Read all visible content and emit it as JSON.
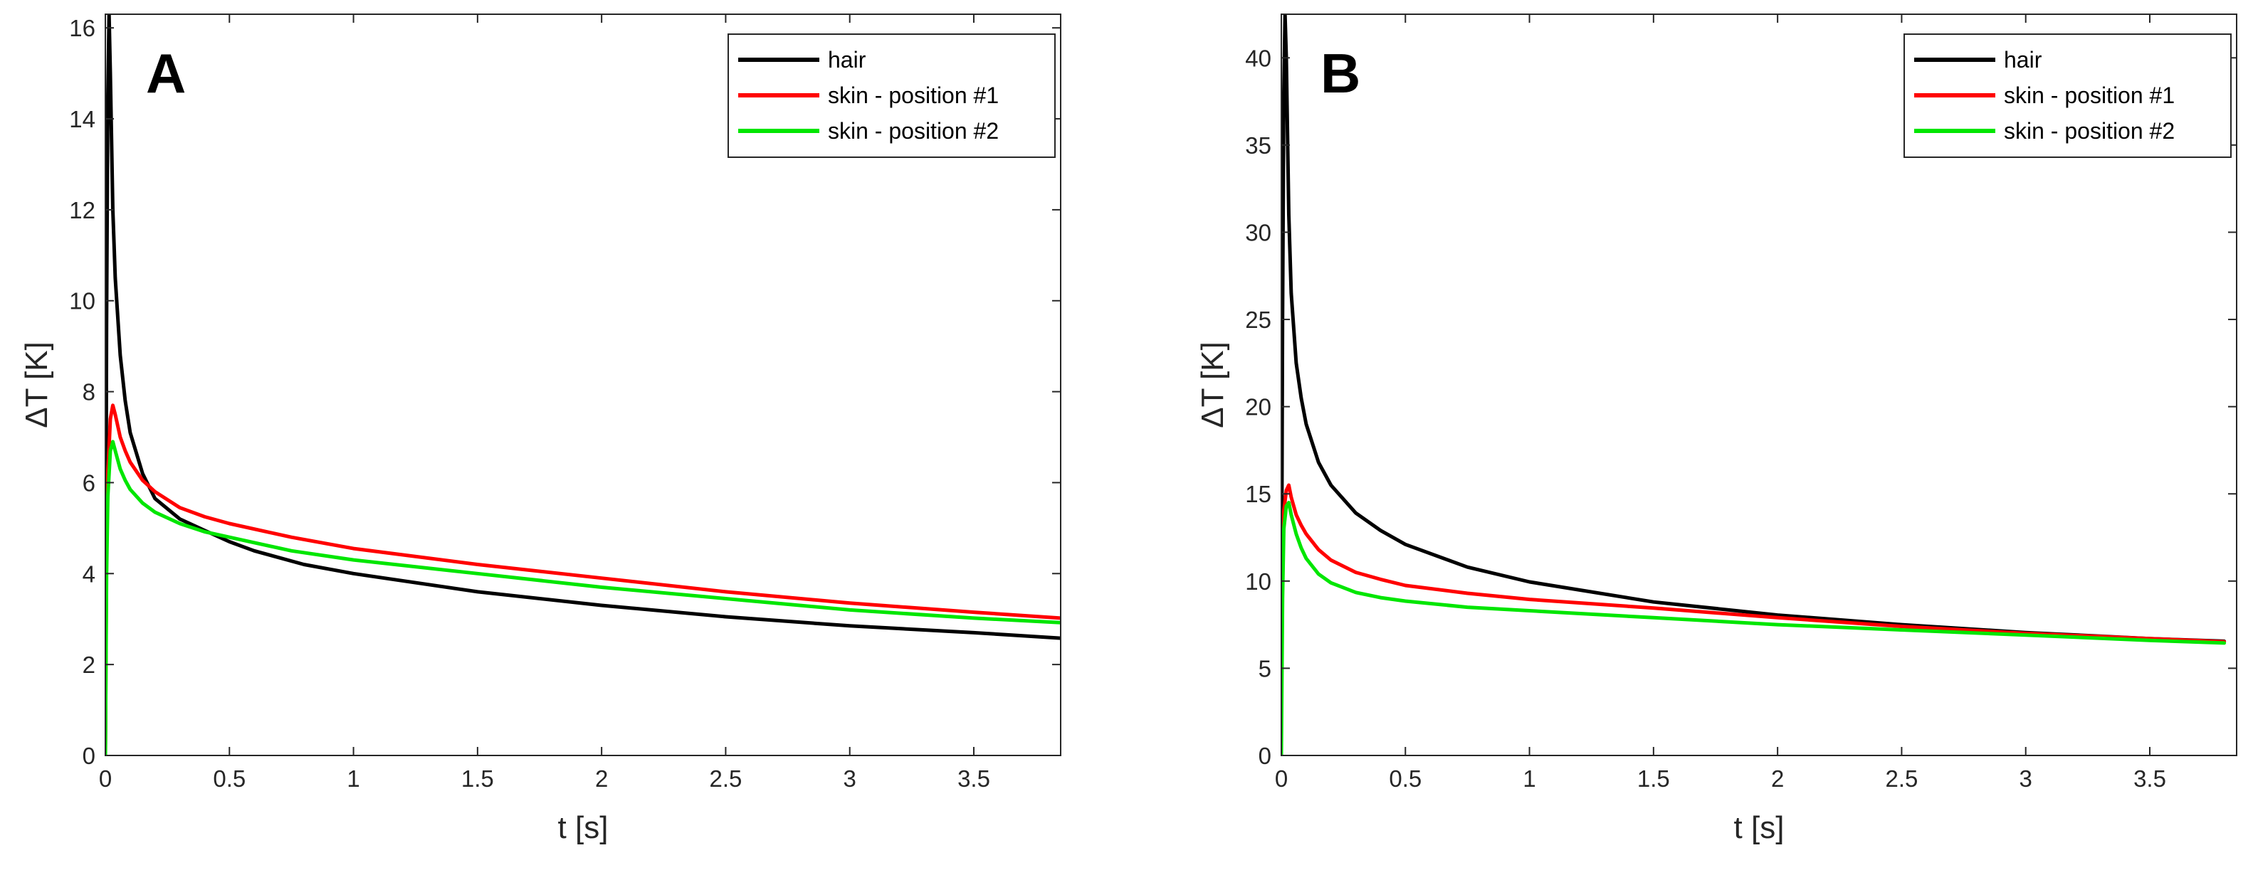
{
  "chart_data": [
    {
      "type": "line",
      "panel_label": "A",
      "xlabel": "t [s]",
      "ylabel": "ΔT [K]",
      "xlim": [
        0,
        3.85
      ],
      "ylim": [
        0,
        16.3
      ],
      "xticks": [
        0,
        0.5,
        1,
        1.5,
        2,
        2.5,
        3,
        3.5
      ],
      "xtick_labels": [
        "0",
        "0.5",
        "1",
        "1.5",
        "2",
        "2.5",
        "3",
        "3.5"
      ],
      "yticks": [
        0,
        2,
        4,
        6,
        8,
        10,
        12,
        14,
        16
      ],
      "ytick_labels": [
        "0",
        "2",
        "4",
        "6",
        "8",
        "10",
        "12",
        "14",
        "16"
      ],
      "grid": false,
      "legend_position": "top-right",
      "series": [
        {
          "name": "hair",
          "color": "#000000",
          "x": [
            0,
            0.005,
            0.01,
            0.015,
            0.02,
            0.03,
            0.04,
            0.06,
            0.08,
            0.1,
            0.15,
            0.2,
            0.3,
            0.4,
            0.5,
            0.6,
            0.8,
            1,
            1.5,
            2,
            2.5,
            3,
            3.5,
            3.85
          ],
          "y": [
            0,
            9.5,
            14.5,
            16.3,
            15,
            12,
            10.5,
            8.8,
            7.8,
            7.1,
            6.2,
            5.65,
            5.2,
            4.95,
            4.7,
            4.5,
            4.2,
            4.0,
            3.6,
            3.3,
            3.05,
            2.85,
            2.7,
            2.58
          ]
        },
        {
          "name": "skin - position #1",
          "color": "#ff0000",
          "x": [
            0,
            0.005,
            0.01,
            0.02,
            0.03,
            0.04,
            0.06,
            0.08,
            0.1,
            0.15,
            0.2,
            0.3,
            0.4,
            0.5,
            0.75,
            1,
            1.5,
            2,
            2.5,
            3,
            3.5,
            3.85
          ],
          "y": [
            0,
            4.5,
            6.2,
            7.4,
            7.7,
            7.5,
            7.0,
            6.7,
            6.45,
            6.05,
            5.8,
            5.45,
            5.25,
            5.1,
            4.8,
            4.55,
            4.2,
            3.9,
            3.6,
            3.35,
            3.15,
            3.02
          ]
        },
        {
          "name": "skin - position #2",
          "color": "#00e600",
          "x": [
            0,
            0.005,
            0.01,
            0.02,
            0.03,
            0.04,
            0.06,
            0.08,
            0.1,
            0.15,
            0.2,
            0.3,
            0.4,
            0.5,
            0.75,
            1,
            1.5,
            2,
            2.5,
            3,
            3.5,
            3.85
          ],
          "y": [
            0,
            4.0,
            5.7,
            6.7,
            6.9,
            6.7,
            6.3,
            6.05,
            5.85,
            5.55,
            5.35,
            5.1,
            4.92,
            4.8,
            4.5,
            4.3,
            4.0,
            3.7,
            3.45,
            3.2,
            3.02,
            2.92
          ]
        }
      ]
    },
    {
      "type": "line",
      "panel_label": "B",
      "xlabel": "t [s]",
      "ylabel": "ΔT [K]",
      "xlim": [
        0,
        3.85
      ],
      "ylim": [
        0,
        42.5
      ],
      "xticks": [
        0,
        0.5,
        1,
        1.5,
        2,
        2.5,
        3,
        3.5
      ],
      "xtick_labels": [
        "0",
        "0.5",
        "1",
        "1.5",
        "2",
        "2.5",
        "3",
        "3.5"
      ],
      "yticks": [
        0,
        5,
        10,
        15,
        20,
        25,
        30,
        35,
        40
      ],
      "ytick_labels": [
        "0",
        "5",
        "10",
        "15",
        "20",
        "25",
        "30",
        "35",
        "40"
      ],
      "grid": false,
      "legend_position": "top-right",
      "series": [
        {
          "name": "hair",
          "color": "#000000",
          "x": [
            0,
            0.005,
            0.01,
            0.015,
            0.02,
            0.03,
            0.04,
            0.06,
            0.08,
            0.1,
            0.15,
            0.2,
            0.3,
            0.4,
            0.5,
            0.75,
            1,
            1.5,
            2,
            2.5,
            3,
            3.5,
            3.8
          ],
          "y": [
            5,
            25,
            38,
            42.5,
            40,
            31,
            26.5,
            22.5,
            20.5,
            19.0,
            16.8,
            15.5,
            13.9,
            12.9,
            12.1,
            10.8,
            9.95,
            8.8,
            8.05,
            7.5,
            7.05,
            6.7,
            6.55
          ]
        },
        {
          "name": "skin - position #1",
          "color": "#ff0000",
          "x": [
            0,
            0.005,
            0.01,
            0.02,
            0.03,
            0.04,
            0.06,
            0.08,
            0.1,
            0.15,
            0.2,
            0.3,
            0.4,
            0.5,
            0.75,
            1,
            1.5,
            2,
            2.5,
            3,
            3.5,
            3.8
          ],
          "y": [
            5,
            11,
            14,
            15.2,
            15.5,
            14.8,
            13.8,
            13.2,
            12.7,
            11.8,
            11.2,
            10.5,
            10.1,
            9.75,
            9.3,
            8.95,
            8.45,
            7.9,
            7.4,
            7.0,
            6.7,
            6.52
          ]
        },
        {
          "name": "skin - position #2",
          "color": "#00e600",
          "x": [
            0,
            0.005,
            0.01,
            0.02,
            0.03,
            0.04,
            0.06,
            0.08,
            0.1,
            0.15,
            0.2,
            0.3,
            0.4,
            0.5,
            0.75,
            1,
            1.5,
            2,
            2.5,
            3,
            3.5,
            3.8
          ],
          "y": [
            0,
            9,
            13,
            14.3,
            14.5,
            13.8,
            12.7,
            11.9,
            11.3,
            10.4,
            9.9,
            9.35,
            9.05,
            8.85,
            8.5,
            8.3,
            7.9,
            7.5,
            7.2,
            6.9,
            6.6,
            6.45
          ]
        }
      ]
    }
  ]
}
